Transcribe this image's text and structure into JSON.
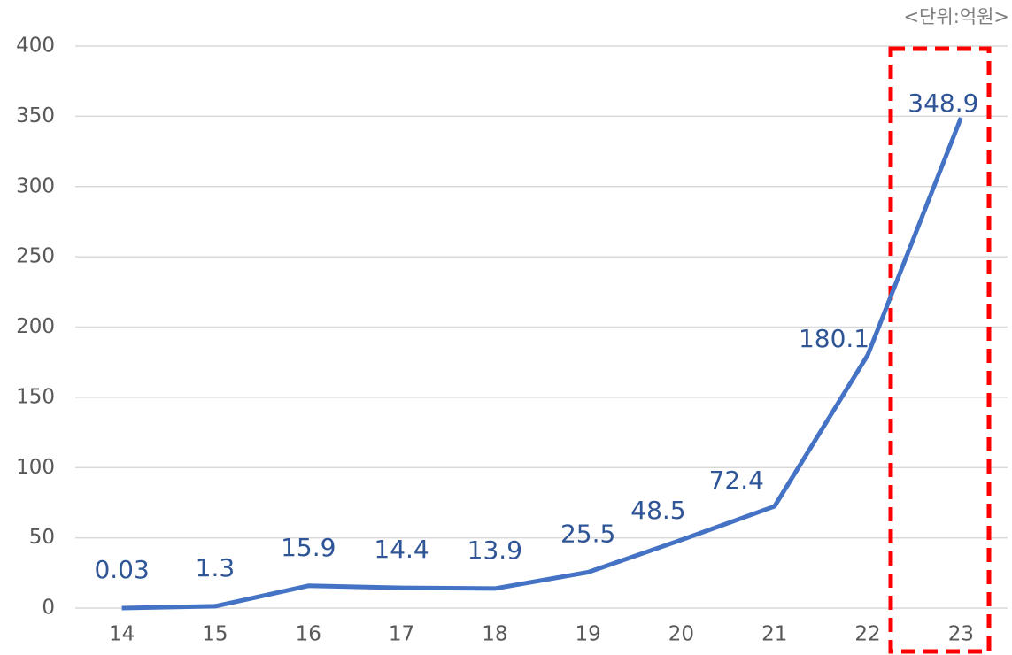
{
  "chart_data": {
    "type": "line",
    "unit_label": "<단위:억원>",
    "categories": [
      "14",
      "15",
      "16",
      "17",
      "18",
      "19",
      "20",
      "21",
      "22",
      "23"
    ],
    "values": [
      0.03,
      1.3,
      15.9,
      14.4,
      13.9,
      25.5,
      48.5,
      72.4,
      180.1,
      348.9
    ],
    "color": "#4472c4",
    "ylim": [
      0,
      400
    ],
    "yticks": [
      0,
      50,
      100,
      150,
      200,
      250,
      300,
      350,
      400
    ],
    "grid": true
  }
}
